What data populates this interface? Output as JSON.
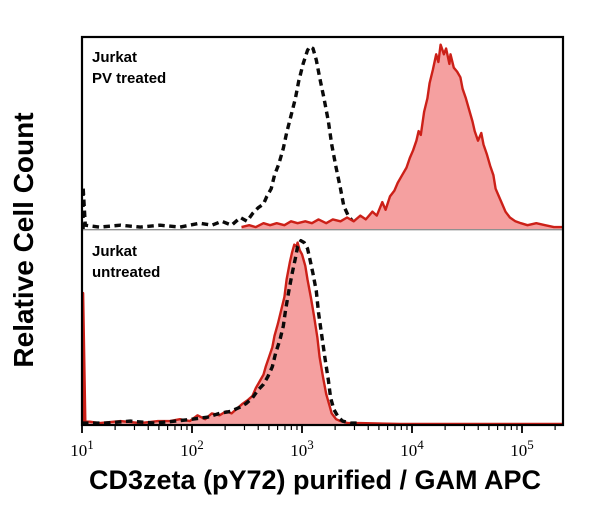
{
  "figure": {
    "y_axis_label": "Relative Cell Count",
    "x_axis_label": "CD3zeta (pY72) purified / GAM APC"
  },
  "colors": {
    "background": "#ffffff",
    "text_color": "#000000",
    "frame_color": "#000000",
    "divider_color": "#909090",
    "dash_color": "#0a0a0a",
    "red_stroke": "#cc2018",
    "red_fill": "#f5a0a0"
  },
  "x_axis": {
    "scale": "log10",
    "range_log10": [
      1.0,
      5.37
    ],
    "tick_exponents": [
      1,
      2,
      3,
      4,
      5
    ],
    "tick_label_base": "10",
    "minor_ticks": true
  },
  "chart_data": [
    {
      "type": "area",
      "panel": "top",
      "annotation": [
        "Jurkat",
        "PV treated"
      ],
      "series": [
        {
          "name": "dashed-black-histogram",
          "style": "dashed_black",
          "points_log10x_height": [
            [
              1.01,
              0.0
            ],
            [
              1.01,
              0.22
            ],
            [
              1.03,
              0.02
            ],
            [
              1.16,
              0.01
            ],
            [
              1.35,
              0.02
            ],
            [
              1.53,
              0.01
            ],
            [
              1.71,
              0.02
            ],
            [
              1.89,
              0.01
            ],
            [
              2.07,
              0.03
            ],
            [
              2.18,
              0.02
            ],
            [
              2.27,
              0.04
            ],
            [
              2.36,
              0.02
            ],
            [
              2.44,
              0.06
            ],
            [
              2.5,
              0.04
            ],
            [
              2.55,
              0.08
            ],
            [
              2.6,
              0.11
            ],
            [
              2.65,
              0.13
            ],
            [
              2.68,
              0.17
            ],
            [
              2.72,
              0.21
            ],
            [
              2.75,
              0.28
            ],
            [
              2.79,
              0.34
            ],
            [
              2.83,
              0.42
            ],
            [
              2.86,
              0.5
            ],
            [
              2.9,
              0.59
            ],
            [
              2.94,
              0.68
            ],
            [
              2.97,
              0.77
            ],
            [
              3.01,
              0.86
            ],
            [
              3.05,
              0.93
            ],
            [
              3.07,
              0.95
            ],
            [
              3.1,
              0.94
            ],
            [
              3.13,
              0.88
            ],
            [
              3.16,
              0.79
            ],
            [
              3.2,
              0.68
            ],
            [
              3.24,
              0.56
            ],
            [
              3.27,
              0.44
            ],
            [
              3.31,
              0.32
            ],
            [
              3.35,
              0.21
            ],
            [
              3.38,
              0.12
            ],
            [
              3.42,
              0.07
            ],
            [
              3.46,
              0.04
            ],
            [
              3.53,
              0.02
            ],
            [
              3.66,
              0.01
            ],
            [
              3.75,
              0.02
            ],
            [
              3.82,
              0.01
            ]
          ]
        },
        {
          "name": "red-filled-histogram",
          "style": "red_filled",
          "points_log10x_height": [
            [
              2.45,
              0.01
            ],
            [
              2.52,
              0.02
            ],
            [
              2.58,
              0.01
            ],
            [
              2.65,
              0.03
            ],
            [
              2.71,
              0.02
            ],
            [
              2.77,
              0.03
            ],
            [
              2.84,
              0.02
            ],
            [
              2.9,
              0.04
            ],
            [
              2.96,
              0.03
            ],
            [
              3.03,
              0.04
            ],
            [
              3.09,
              0.03
            ],
            [
              3.15,
              0.05
            ],
            [
              3.22,
              0.03
            ],
            [
              3.28,
              0.05
            ],
            [
              3.35,
              0.04
            ],
            [
              3.41,
              0.06
            ],
            [
              3.47,
              0.04
            ],
            [
              3.53,
              0.07
            ],
            [
              3.58,
              0.05
            ],
            [
              3.64,
              0.09
            ],
            [
              3.68,
              0.07
            ],
            [
              3.73,
              0.14
            ],
            [
              3.76,
              0.1
            ],
            [
              3.8,
              0.17
            ],
            [
              3.84,
              0.2
            ],
            [
              3.87,
              0.24
            ],
            [
              3.91,
              0.28
            ],
            [
              3.95,
              0.32
            ],
            [
              3.98,
              0.37
            ],
            [
              4.01,
              0.41
            ],
            [
              4.04,
              0.46
            ],
            [
              4.06,
              0.51
            ],
            [
              4.08,
              0.49
            ],
            [
              4.11,
              0.61
            ],
            [
              4.14,
              0.68
            ],
            [
              4.16,
              0.76
            ],
            [
              4.19,
              0.83
            ],
            [
              4.22,
              0.91
            ],
            [
              4.24,
              0.87
            ],
            [
              4.26,
              0.96
            ],
            [
              4.29,
              0.91
            ],
            [
              4.31,
              0.94
            ],
            [
              4.34,
              0.86
            ],
            [
              4.35,
              0.91
            ],
            [
              4.38,
              0.84
            ],
            [
              4.41,
              0.82
            ],
            [
              4.44,
              0.79
            ],
            [
              4.46,
              0.73
            ],
            [
              4.49,
              0.68
            ],
            [
              4.52,
              0.62
            ],
            [
              4.55,
              0.56
            ],
            [
              4.57,
              0.51
            ],
            [
              4.6,
              0.46
            ],
            [
              4.63,
              0.5
            ],
            [
              4.65,
              0.44
            ],
            [
              4.68,
              0.39
            ],
            [
              4.71,
              0.33
            ],
            [
              4.74,
              0.28
            ],
            [
              4.76,
              0.21
            ],
            [
              4.79,
              0.17
            ],
            [
              4.82,
              0.13
            ],
            [
              4.85,
              0.09
            ],
            [
              4.89,
              0.06
            ],
            [
              4.94,
              0.04
            ],
            [
              4.99,
              0.03
            ],
            [
              5.05,
              0.02
            ],
            [
              5.13,
              0.03
            ],
            [
              5.21,
              0.02
            ],
            [
              5.29,
              0.01
            ],
            [
              5.37,
              0.01
            ]
          ]
        }
      ]
    },
    {
      "type": "area",
      "panel": "bottom",
      "annotation": [
        "Jurkat",
        "untreated"
      ],
      "series": [
        {
          "name": "red-filled-histogram",
          "style": "red_filled",
          "points_log10x_height": [
            [
              1.01,
              0.01
            ],
            [
              1.01,
              0.68
            ],
            [
              1.03,
              0.02
            ],
            [
              1.16,
              0.01
            ],
            [
              1.35,
              0.02
            ],
            [
              1.53,
              0.01
            ],
            [
              1.69,
              0.02
            ],
            [
              1.8,
              0.02
            ],
            [
              1.89,
              0.03
            ],
            [
              1.98,
              0.02
            ],
            [
              2.05,
              0.05
            ],
            [
              2.12,
              0.03
            ],
            [
              2.18,
              0.06
            ],
            [
              2.25,
              0.05
            ],
            [
              2.31,
              0.07
            ],
            [
              2.36,
              0.06
            ],
            [
              2.42,
              0.09
            ],
            [
              2.46,
              0.11
            ],
            [
              2.51,
              0.13
            ],
            [
              2.55,
              0.15
            ],
            [
              2.58,
              0.19
            ],
            [
              2.62,
              0.23
            ],
            [
              2.65,
              0.26
            ],
            [
              2.67,
              0.3
            ],
            [
              2.7,
              0.35
            ],
            [
              2.73,
              0.4
            ],
            [
              2.75,
              0.46
            ],
            [
              2.78,
              0.52
            ],
            [
              2.81,
              0.59
            ],
            [
              2.84,
              0.66
            ],
            [
              2.86,
              0.75
            ],
            [
              2.89,
              0.84
            ],
            [
              2.91,
              0.89
            ],
            [
              2.93,
              0.93
            ],
            [
              2.95,
              0.92
            ],
            [
              2.96,
              0.94
            ],
            [
              2.98,
              0.9
            ],
            [
              3.0,
              0.88
            ],
            [
              3.03,
              0.82
            ],
            [
              3.05,
              0.75
            ],
            [
              3.08,
              0.66
            ],
            [
              3.11,
              0.56
            ],
            [
              3.14,
              0.45
            ],
            [
              3.16,
              0.35
            ],
            [
              3.19,
              0.25
            ],
            [
              3.22,
              0.16
            ],
            [
              3.25,
              0.1
            ],
            [
              3.27,
              0.06
            ],
            [
              3.31,
              0.03
            ],
            [
              3.35,
              0.02
            ],
            [
              3.42,
              0.01
            ],
            [
              3.53,
              0.01
            ],
            [
              3.89,
              0.005
            ],
            [
              4.35,
              0.005
            ],
            [
              4.8,
              0.005
            ],
            [
              5.37,
              0.005
            ]
          ]
        },
        {
          "name": "dashed-black-histogram",
          "style": "dashed_black",
          "points_log10x_height": [
            [
              1.0,
              0.01
            ],
            [
              1.21,
              0.01
            ],
            [
              1.44,
              0.02
            ],
            [
              1.66,
              0.01
            ],
            [
              1.85,
              0.02
            ],
            [
              2.0,
              0.03
            ],
            [
              2.14,
              0.04
            ],
            [
              2.25,
              0.06
            ],
            [
              2.35,
              0.07
            ],
            [
              2.43,
              0.09
            ],
            [
              2.49,
              0.11
            ],
            [
              2.55,
              0.14
            ],
            [
              2.6,
              0.18
            ],
            [
              2.65,
              0.21
            ],
            [
              2.69,
              0.25
            ],
            [
              2.73,
              0.3
            ],
            [
              2.76,
              0.37
            ],
            [
              2.8,
              0.44
            ],
            [
              2.83,
              0.51
            ],
            [
              2.85,
              0.59
            ],
            [
              2.88,
              0.69
            ],
            [
              2.91,
              0.78
            ],
            [
              2.94,
              0.86
            ],
            [
              2.96,
              0.92
            ],
            [
              2.99,
              0.95
            ],
            [
              3.02,
              0.94
            ],
            [
              3.05,
              0.91
            ],
            [
              3.07,
              0.86
            ],
            [
              3.1,
              0.78
            ],
            [
              3.13,
              0.69
            ],
            [
              3.15,
              0.58
            ],
            [
              3.18,
              0.46
            ],
            [
              3.21,
              0.34
            ],
            [
              3.24,
              0.23
            ],
            [
              3.26,
              0.14
            ],
            [
              3.29,
              0.08
            ],
            [
              3.33,
              0.04
            ],
            [
              3.37,
              0.02
            ],
            [
              3.44,
              0.01
            ],
            [
              3.51,
              0.01
            ]
          ]
        }
      ]
    }
  ]
}
